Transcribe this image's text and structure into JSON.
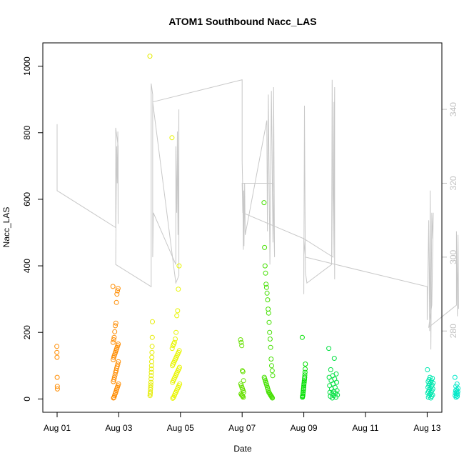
{
  "chart_data": {
    "type": "scatter",
    "title": "ATOM1 Southbound Nacc_LAS",
    "xlabel": "Date",
    "ylabel": "Nacc_LAS",
    "xlim": [
      0,
      12.5
    ],
    "ylim": [
      -40,
      1070
    ],
    "x_tick_values": [
      0,
      2,
      4,
      6,
      8,
      10,
      12
    ],
    "x_tick_labels": [
      "Aug 01",
      "Aug 03",
      "Aug 05",
      "Aug 07",
      "Aug 09",
      "Aug 11",
      "Aug 13"
    ],
    "y_ticks": [
      0,
      200,
      400,
      600,
      800,
      1000
    ],
    "right_axis": {
      "ylim": [
        258,
        358
      ],
      "ticks": [
        280,
        300,
        320,
        340
      ],
      "color": "#c0c0c0"
    },
    "series": [
      {
        "name": "Nacc_LAS",
        "kind": "points",
        "marker": "open-circle",
        "color_by_time": true,
        "clusters": [
          {
            "center": 0.0,
            "width": 0.02,
            "color": "#ff8c00",
            "values": [
              158,
              140,
              125,
              65,
              38,
              30
            ]
          },
          {
            "center": 1.9,
            "width": 0.18,
            "color": "#ff8c00",
            "values": [
              338,
              332,
              325,
              315,
              290,
              228,
              220,
              202,
              185,
              178,
              170,
              165,
              160,
              155,
              150,
              145,
              140,
              135,
              130,
              125,
              118,
              112,
              105,
              98,
              92,
              85,
              80,
              72,
              65,
              58,
              52,
              45,
              40,
              35,
              30,
              25,
              20,
              15,
              10,
              5,
              3
            ]
          },
          {
            "center": 3.05,
            "width": 0.08,
            "color": "#e5ec00",
            "values": [
              1030,
              232,
              185,
              158,
              140,
              125,
              112,
              100,
              90,
              80,
              70,
              60,
              50,
              42,
              35,
              28,
              20,
              15,
              10
            ]
          },
          {
            "center": 3.85,
            "width": 0.25,
            "color": "#e8f500",
            "values": [
              785,
              400,
              330,
              265,
              250,
              200,
              180,
              170,
              165,
              160,
              152,
              145,
              140,
              135,
              130,
              125,
              120,
              115,
              110,
              105,
              100,
              95,
              90,
              85,
              80,
              75,
              70,
              65,
              60,
              55,
              50,
              45,
              40,
              35,
              30,
              25,
              20,
              15,
              10,
              5,
              2
            ]
          },
          {
            "center": 6.0,
            "width": 0.1,
            "color": "#66e000",
            "values": [
              178,
              170,
              160,
              85,
              82,
              55,
              45,
              40,
              35,
              30,
              25,
              20,
              15,
              12,
              10,
              8,
              5
            ]
          },
          {
            "center": 6.85,
            "width": 0.28,
            "color": "#44e000",
            "values": [
              590,
              455,
              400,
              378,
              345,
              335,
              318,
              298,
              270,
              258,
              230,
              200,
              180,
              155,
              120,
              100,
              85,
              70,
              65,
              60,
              55,
              50,
              45,
              40,
              35,
              30,
              25,
              20,
              18,
              15,
              12,
              10,
              8,
              5,
              3
            ]
          },
          {
            "center": 8.0,
            "width": 0.1,
            "color": "#00e000",
            "values": [
              185,
              105,
              90,
              80,
              72,
              65,
              60,
              55,
              50,
              45,
              40,
              35,
              30,
              25,
              20,
              15,
              10,
              8,
              5
            ]
          },
          {
            "center": 8.95,
            "width": 0.28,
            "color": "#00e040",
            "values": [
              152,
              122,
              88,
              75,
              70,
              65,
              60,
              55,
              50,
              45,
              40,
              35,
              30,
              25,
              22,
              20,
              18,
              15,
              12,
              10,
              8,
              5,
              3
            ]
          },
          {
            "center": 12.1,
            "width": 0.18,
            "color": "#00e8b0",
            "values": [
              88,
              65,
              62,
              58,
              55,
              52,
              50,
              48,
              45,
              42,
              40,
              38,
              35,
              32,
              30,
              28,
              25,
              22,
              20,
              18,
              15,
              12,
              10,
              8,
              5,
              3
            ]
          },
          {
            "center": 12.95,
            "width": 0.1,
            "color": "#00e8c8",
            "values": [
              65,
              45,
              38,
              32,
              28,
              25,
              22,
              20,
              18,
              15,
              12,
              10,
              8,
              5
            ]
          }
        ]
      },
      {
        "name": "right-axis trace",
        "kind": "line",
        "axis": "right",
        "color": "#c8c8c8",
        "points": [
          [
            0.0,
            336
          ],
          [
            0.0,
            318
          ],
          [
            1.9,
            308
          ],
          [
            1.9,
            335
          ],
          [
            1.98,
            330
          ],
          [
            1.98,
            309
          ],
          [
            1.97,
            334
          ],
          [
            1.95,
            320
          ],
          [
            1.93,
            330
          ],
          [
            1.91,
            311
          ],
          [
            1.9,
            298
          ],
          [
            3.05,
            292
          ],
          [
            3.05,
            347
          ],
          [
            3.1,
            344
          ],
          [
            3.1,
            300
          ],
          [
            3.12,
            312
          ],
          [
            3.85,
            298
          ],
          [
            3.85,
            330
          ],
          [
            3.88,
            312
          ],
          [
            3.9,
            334
          ],
          [
            3.92,
            306
          ],
          [
            3.95,
            340
          ],
          [
            3.95,
            295
          ],
          [
            3.85,
            293
          ],
          [
            3.1,
            342
          ],
          [
            6.0,
            348
          ],
          [
            6.0,
            326
          ],
          [
            6.02,
            318
          ],
          [
            6.04,
            302
          ],
          [
            6.05,
            318
          ],
          [
            6.06,
            303
          ],
          [
            6.08,
            320
          ],
          [
            6.1,
            306
          ],
          [
            6.8,
            337
          ],
          [
            6.82,
            307
          ],
          [
            6.85,
            344
          ],
          [
            6.9,
            298
          ],
          [
            6.95,
            345
          ],
          [
            7.0,
            304
          ],
          [
            7.02,
            346
          ],
          [
            7.05,
            300
          ],
          [
            7.0,
            320
          ],
          [
            6.0,
            320
          ],
          [
            6.02,
            312
          ],
          [
            8.0,
            305
          ],
          [
            8.0,
            290
          ],
          [
            8.02,
            341
          ],
          [
            8.05,
            296
          ],
          [
            8.1,
            293
          ],
          [
            8.9,
            298
          ],
          [
            8.92,
            348
          ],
          [
            8.95,
            302
          ],
          [
            8.98,
            342
          ],
          [
            9.0,
            294
          ],
          [
            9.0,
            346
          ],
          [
            8.95,
            300
          ],
          [
            8.0,
            305
          ],
          [
            8.05,
            300
          ],
          [
            12.0,
            292
          ],
          [
            12.0,
            283
          ],
          [
            12.05,
            310
          ],
          [
            12.08,
            280
          ],
          [
            12.1,
            318
          ],
          [
            12.12,
            275
          ],
          [
            12.15,
            312
          ],
          [
            12.18,
            305
          ],
          [
            12.2,
            312
          ],
          [
            12.15,
            287
          ],
          [
            12.05,
            281
          ],
          [
            12.95,
            287
          ],
          [
            12.95,
            307
          ],
          [
            12.98,
            284
          ],
          [
            13.0,
            306
          ],
          [
            13.02,
            286
          ]
        ]
      }
    ],
    "legend": "none"
  }
}
